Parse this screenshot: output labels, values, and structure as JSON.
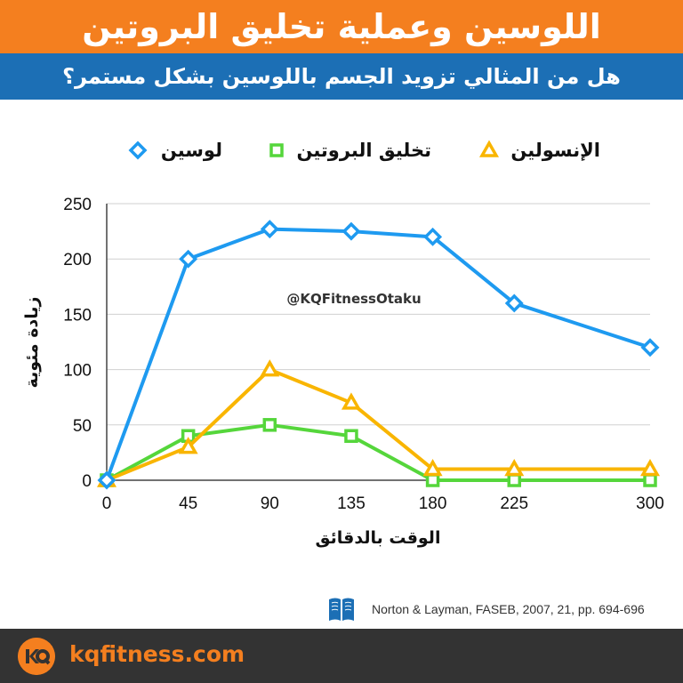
{
  "header": {
    "title": "اللوسين وعملية تخليق البروتين",
    "subtitle": "هل من المثالي تزويد الجسم باللوسين بشكل مستمر؟"
  },
  "watermark": "@KQFitnessOtaku",
  "source_text": "Norton & Layman, FASEB, 2007, 21, pp. 694-696",
  "footer": {
    "domain": "kqfitness.com"
  },
  "colors": {
    "orange": "#f47f1f",
    "blue": "#1c6fb5",
    "dark": "#333333"
  },
  "chart_data": {
    "type": "line",
    "x": [
      0,
      45,
      90,
      135,
      180,
      225,
      300
    ],
    "xlabel": "الوقت بالدقائق",
    "ylabel": "زيادة مئوية",
    "xlim": [
      0,
      300
    ],
    "ylim": [
      0,
      250
    ],
    "yticks": [
      0,
      50,
      100,
      150,
      200,
      250
    ],
    "xticks": [
      0,
      45,
      90,
      135,
      180,
      225,
      300
    ],
    "grid": "horizontal",
    "legend_position": "top",
    "series": [
      {
        "name": "لوسين",
        "values": [
          0,
          200,
          227,
          225,
          220,
          160,
          120
        ],
        "color": "#1e9af0",
        "marker": "diamond"
      },
      {
        "name": "تخليق البروتين",
        "values": [
          0,
          40,
          50,
          40,
          0,
          0,
          0
        ],
        "color": "#55d63b",
        "marker": "square"
      },
      {
        "name": "الإنسولين",
        "values": [
          0,
          30,
          100,
          70,
          10,
          10,
          10
        ],
        "color": "#f9b500",
        "marker": "triangle"
      }
    ]
  }
}
